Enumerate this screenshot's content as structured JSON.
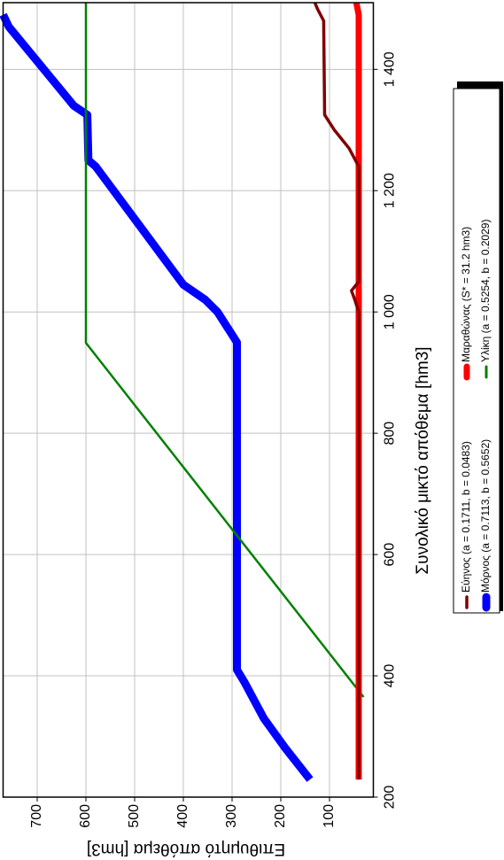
{
  "chart_data": {
    "type": "line",
    "x_label": "Συνολικό μικτό απόθεμα [hm3]",
    "y_label": "Επιθυμητό απόθεμα [hm3]",
    "xlim": [
      200,
      1510
    ],
    "ylim": [
      10,
      770
    ],
    "xticks": [
      200,
      400,
      600,
      800,
      {
        "value": 1000,
        "label": "1 000"
      },
      {
        "value": 1200,
        "label": "1 200"
      },
      {
        "value": 1400,
        "label": "1 400"
      }
    ],
    "yticks": [
      100,
      200,
      300,
      400,
      500,
      600,
      700
    ],
    "grid": true,
    "series": [
      {
        "name": "Εύηνος (a = 0.1711, b = 0.0483)",
        "color": "#800000",
        "width": 3.5,
        "x": [
          229,
          1000,
          1020,
          1035,
          1050,
          1240,
          1270,
          1300,
          1325,
          1480,
          1500,
          1510
        ],
        "values": [
          40,
          40,
          48,
          55,
          40,
          40,
          60,
          90,
          110,
          112,
          125,
          130
        ]
      },
      {
        "name": "Μαραθώνας (S* = 31.2 hm3)",
        "color": "#ff0000",
        "width": 7,
        "x": [
          229,
          1490,
          1510
        ],
        "values": [
          40,
          40,
          45
        ]
      },
      {
        "name": "Μόρνος (a = 0.7113, b = 0.5652)",
        "color": "#0000ff",
        "width": 9,
        "x": [
          229,
          280,
          330,
          390,
          410,
          950,
          1000,
          1020,
          1045,
          1240,
          1250,
          1325,
          1340,
          1470,
          1490
        ],
        "values": [
          140,
          190,
          235,
          275,
          290,
          290,
          330,
          355,
          400,
          580,
          595,
          597,
          625,
          758,
          770
        ]
      },
      {
        "name": "Υλίκη (a = 0.5254, b = 0.2029)",
        "color": "#008000",
        "width": 2.5,
        "x": [
          365,
          949,
          1510
        ],
        "values": [
          30,
          600,
          600
        ]
      }
    ]
  }
}
